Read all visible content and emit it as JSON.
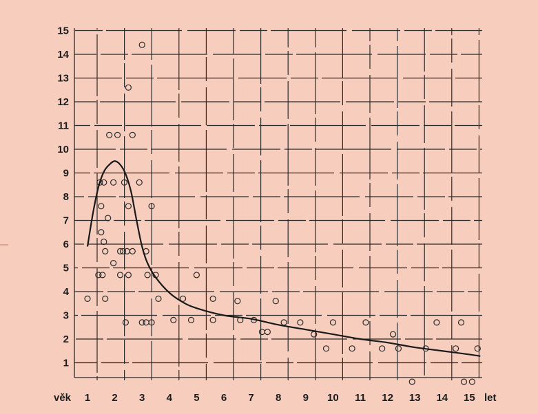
{
  "chart_data": {
    "type": "scatter",
    "xlabel": "let",
    "ylabel": "věk",
    "xlim": [
      0.9,
      15.4
    ],
    "ylim": [
      0,
      15
    ],
    "x_ticks": [
      "1",
      "2",
      "3",
      "4",
      "5",
      "6",
      "7",
      "8",
      "9",
      "10",
      "11",
      "12",
      "13",
      "14",
      "15"
    ],
    "y_ticks": [
      "1",
      "2",
      "3",
      "4",
      "5",
      "6",
      "7",
      "8",
      "9",
      "10",
      "11",
      "12",
      "13",
      "14",
      "15"
    ],
    "grid": true,
    "points": [
      {
        "x": 1.0,
        "y": 3.7
      },
      {
        "x": 1.4,
        "y": 4.7
      },
      {
        "x": 1.55,
        "y": 4.7
      },
      {
        "x": 1.45,
        "y": 8.6
      },
      {
        "x": 1.6,
        "y": 8.6
      },
      {
        "x": 1.5,
        "y": 7.6
      },
      {
        "x": 1.5,
        "y": 6.5
      },
      {
        "x": 1.6,
        "y": 6.1
      },
      {
        "x": 1.65,
        "y": 5.7
      },
      {
        "x": 1.65,
        "y": 3.7
      },
      {
        "x": 1.75,
        "y": 7.1
      },
      {
        "x": 1.8,
        "y": 10.6
      },
      {
        "x": 2.1,
        "y": 10.6
      },
      {
        "x": 1.95,
        "y": 8.6
      },
      {
        "x": 1.95,
        "y": 5.2
      },
      {
        "x": 2.2,
        "y": 5.7
      },
      {
        "x": 2.3,
        "y": 5.7
      },
      {
        "x": 2.45,
        "y": 5.7
      },
      {
        "x": 2.65,
        "y": 5.7
      },
      {
        "x": 2.2,
        "y": 4.7
      },
      {
        "x": 2.5,
        "y": 4.7
      },
      {
        "x": 2.35,
        "y": 8.6
      },
      {
        "x": 2.5,
        "y": 12.6
      },
      {
        "x": 2.5,
        "y": 7.6
      },
      {
        "x": 2.65,
        "y": 10.6
      },
      {
        "x": 2.4,
        "y": 2.7
      },
      {
        "x": 3.0,
        "y": 14.4
      },
      {
        "x": 2.9,
        "y": 8.6
      },
      {
        "x": 3.15,
        "y": 5.7
      },
      {
        "x": 3.2,
        "y": 4.7
      },
      {
        "x": 3.5,
        "y": 4.7
      },
      {
        "x": 3.35,
        "y": 7.6
      },
      {
        "x": 3.0,
        "y": 2.7
      },
      {
        "x": 3.15,
        "y": 2.7
      },
      {
        "x": 3.35,
        "y": 2.7
      },
      {
        "x": 3.6,
        "y": 3.7
      },
      {
        "x": 4.15,
        "y": 2.8
      },
      {
        "x": 4.5,
        "y": 3.7
      },
      {
        "x": 4.8,
        "y": 2.8
      },
      {
        "x": 5.0,
        "y": 4.7
      },
      {
        "x": 5.6,
        "y": 3.7
      },
      {
        "x": 5.6,
        "y": 2.8
      },
      {
        "x": 6.5,
        "y": 3.6
      },
      {
        "x": 6.6,
        "y": 2.8
      },
      {
        "x": 7.1,
        "y": 2.8
      },
      {
        "x": 7.4,
        "y": 2.3
      },
      {
        "x": 7.6,
        "y": 2.3
      },
      {
        "x": 7.9,
        "y": 3.6
      },
      {
        "x": 8.2,
        "y": 2.7
      },
      {
        "x": 8.8,
        "y": 2.7
      },
      {
        "x": 9.3,
        "y": 2.2
      },
      {
        "x": 9.75,
        "y": 1.6
      },
      {
        "x": 10.0,
        "y": 2.7
      },
      {
        "x": 10.7,
        "y": 1.6
      },
      {
        "x": 11.2,
        "y": 2.7
      },
      {
        "x": 11.8,
        "y": 1.6
      },
      {
        "x": 12.2,
        "y": 2.2
      },
      {
        "x": 12.4,
        "y": 1.6
      },
      {
        "x": 12.9,
        "y": 0.2
      },
      {
        "x": 13.4,
        "y": 1.6
      },
      {
        "x": 13.8,
        "y": 2.7
      },
      {
        "x": 14.5,
        "y": 1.6
      },
      {
        "x": 14.7,
        "y": 2.7
      },
      {
        "x": 14.8,
        "y": 0.2
      },
      {
        "x": 15.1,
        "y": 0.2
      },
      {
        "x": 15.3,
        "y": 1.6
      }
    ],
    "curve": [
      {
        "x": 1.0,
        "y": 5.9
      },
      {
        "x": 1.2,
        "y": 7.3
      },
      {
        "x": 1.4,
        "y": 8.4
      },
      {
        "x": 1.6,
        "y": 9.05
      },
      {
        "x": 1.8,
        "y": 9.35
      },
      {
        "x": 2.0,
        "y": 9.5
      },
      {
        "x": 2.2,
        "y": 9.35
      },
      {
        "x": 2.4,
        "y": 8.95
      },
      {
        "x": 2.6,
        "y": 8.2
      },
      {
        "x": 2.8,
        "y": 7.0
      },
      {
        "x": 3.0,
        "y": 5.9
      },
      {
        "x": 3.2,
        "y": 5.2
      },
      {
        "x": 3.5,
        "y": 4.6
      },
      {
        "x": 4.0,
        "y": 3.95
      },
      {
        "x": 4.5,
        "y": 3.55
      },
      {
        "x": 5.0,
        "y": 3.3
      },
      {
        "x": 6.0,
        "y": 3.0
      },
      {
        "x": 7.0,
        "y": 2.85
      },
      {
        "x": 8.0,
        "y": 2.6
      },
      {
        "x": 9.0,
        "y": 2.4
      },
      {
        "x": 10.0,
        "y": 2.2
      },
      {
        "x": 11.0,
        "y": 2.0
      },
      {
        "x": 12.0,
        "y": 1.85
      },
      {
        "x": 13.0,
        "y": 1.65
      },
      {
        "x": 14.0,
        "y": 1.5
      },
      {
        "x": 15.0,
        "y": 1.35
      },
      {
        "x": 15.4,
        "y": 1.28
      }
    ]
  }
}
